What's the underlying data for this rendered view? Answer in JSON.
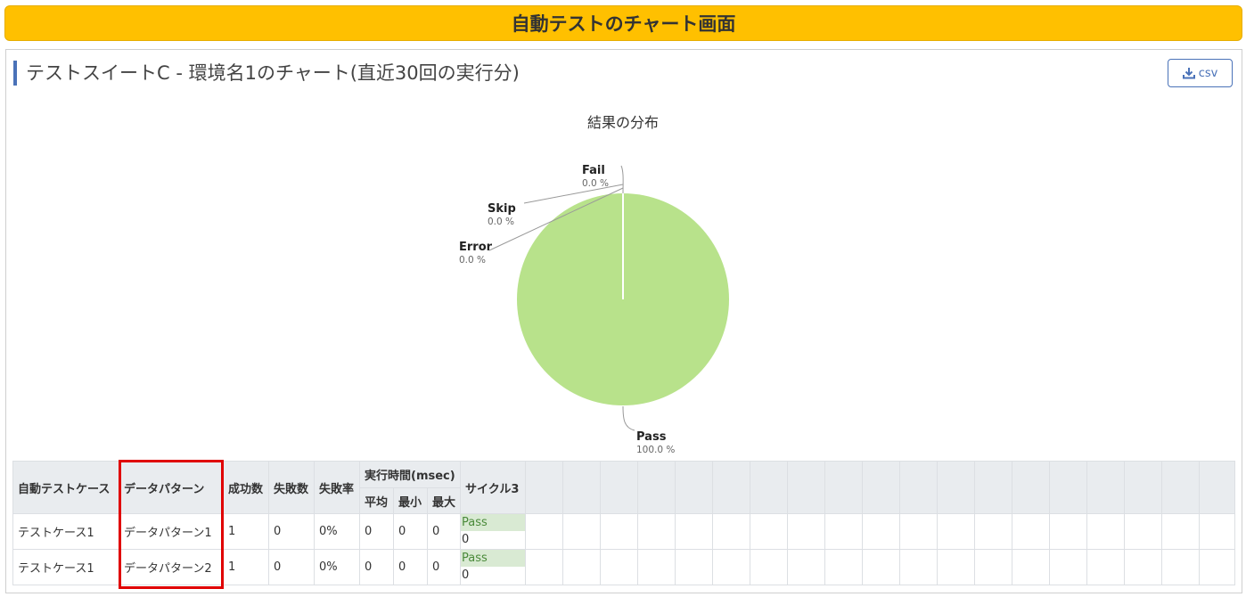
{
  "page_header": "自動テストのチャート画面",
  "panel": {
    "title": "テストスイートC - 環境名1のチャート(直近30回の実行分)",
    "csv_button_label": "csv"
  },
  "chart_data": {
    "type": "pie",
    "title": "結果の分布",
    "slices": [
      {
        "name": "Pass",
        "value": 100.0,
        "label": "100.0 %",
        "color": "#b8e28b"
      },
      {
        "name": "Fail",
        "value": 0.0,
        "label": "0.0 %",
        "color": "#f7a35c"
      },
      {
        "name": "Skip",
        "value": 0.0,
        "label": "0.0 %",
        "color": "#cccccc"
      },
      {
        "name": "Error",
        "value": 0.0,
        "label": "0.0 %",
        "color": "#f15c80"
      }
    ]
  },
  "table": {
    "headers": {
      "test_case": "自動テストケース",
      "data_pattern": "データパターン",
      "success": "成功数",
      "failure": "失敗数",
      "failure_rate": "失敗率",
      "exec_time": "実行時間(msec)",
      "avg": "平均",
      "min": "最小",
      "max": "最大",
      "cycle": "サイクル3"
    },
    "rows": [
      {
        "test_case": "テストケース1",
        "data_pattern": "データパターン1",
        "success": "1",
        "failure": "0",
        "failure_rate": "0%",
        "avg": "0",
        "min": "0",
        "max": "0",
        "cycle_status": "Pass",
        "cycle_value": "0"
      },
      {
        "test_case": "テストケース1",
        "data_pattern": "データパターン2",
        "success": "1",
        "failure": "0",
        "failure_rate": "0%",
        "avg": "0",
        "min": "0",
        "max": "0",
        "cycle_status": "Pass",
        "cycle_value": "0"
      }
    ]
  },
  "colors": {
    "banner": "#ffc000",
    "accent": "#4a72b8",
    "pass": "#b8e28b",
    "highlight": "#e00000"
  }
}
